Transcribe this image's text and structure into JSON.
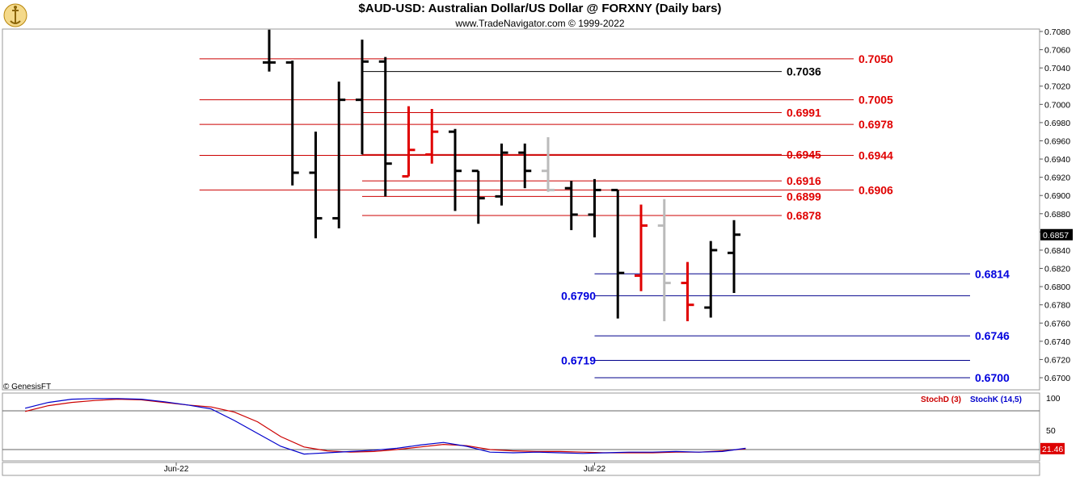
{
  "header": {
    "title": "$AUD-USD:  Australian Dollar/US Dollar @ FORXNY  (Daily bars)",
    "subtitle": "www.TradeNavigator.com © 1999-2022"
  },
  "footer": {
    "copyright": "© GenesisFT"
  },
  "colors": {
    "up_bar": "#000000",
    "down_bar_red": "#e00000",
    "neutral_bar_gray": "#bbbbbb",
    "resistance_line": "#cc0000",
    "support_line": "#00008b",
    "support_label": "#0000dd",
    "stoch_d": "#cc0000",
    "stoch_k": "#0000cc",
    "price_marker_bg": "#000000",
    "stoch_marker_bg": "#dd0000"
  },
  "chart_data": [
    {
      "type": "ohlc",
      "ylim": [
        0.669,
        0.709
      ],
      "y_ticks": [
        "0.7080",
        "0.7060",
        "0.7040",
        "0.7020",
        "0.7000",
        "0.6980",
        "0.6960",
        "0.6940",
        "0.6920",
        "0.6900",
        "0.6880",
        "0.6860",
        "0.6840",
        "0.6820",
        "0.6800",
        "0.6780",
        "0.6760",
        "0.6740",
        "0.6720",
        "0.6700"
      ],
      "x_labels": [
        {
          "label": "Jun-22",
          "index": -4
        },
        {
          "label": "Jul-22",
          "index": 14
        }
      ],
      "last_price": "0.6857",
      "bars": [
        {
          "o": 0.7046,
          "h": 0.7082,
          "l": 0.7036,
          "c": 0.7046,
          "color": "black"
        },
        {
          "o": 0.7046,
          "h": 0.7048,
          "l": 0.6911,
          "c": 0.6925,
          "color": "black"
        },
        {
          "o": 0.6925,
          "h": 0.697,
          "l": 0.6853,
          "c": 0.6875,
          "color": "black"
        },
        {
          "o": 0.6875,
          "h": 0.7025,
          "l": 0.6864,
          "c": 0.7005,
          "color": "black"
        },
        {
          "o": 0.7005,
          "h": 0.7071,
          "l": 0.6945,
          "c": 0.7047,
          "color": "black"
        },
        {
          "o": 0.7047,
          "h": 0.7052,
          "l": 0.6899,
          "c": 0.6935,
          "color": "black"
        },
        {
          "o": 0.6921,
          "h": 0.6998,
          "l": 0.6921,
          "c": 0.695,
          "color": "red"
        },
        {
          "o": 0.6945,
          "h": 0.6995,
          "l": 0.6935,
          "c": 0.697,
          "color": "red"
        },
        {
          "o": 0.697,
          "h": 0.6973,
          "l": 0.6883,
          "c": 0.6927,
          "color": "black"
        },
        {
          "o": 0.6927,
          "h": 0.6927,
          "l": 0.6869,
          "c": 0.6897,
          "color": "black"
        },
        {
          "o": 0.6899,
          "h": 0.6957,
          "l": 0.6889,
          "c": 0.6947,
          "color": "black"
        },
        {
          "o": 0.6947,
          "h": 0.6957,
          "l": 0.6908,
          "c": 0.6927,
          "color": "black"
        },
        {
          "o": 0.6927,
          "h": 0.6964,
          "l": 0.6904,
          "c": 0.6906,
          "color": "gray"
        },
        {
          "o": 0.6908,
          "h": 0.6916,
          "l": 0.6862,
          "c": 0.6879,
          "color": "black"
        },
        {
          "o": 0.6879,
          "h": 0.6918,
          "l": 0.6854,
          "c": 0.6906,
          "color": "black"
        },
        {
          "o": 0.6906,
          "h": 0.6906,
          "l": 0.6765,
          "c": 0.6815,
          "color": "black"
        },
        {
          "o": 0.6812,
          "h": 0.689,
          "l": 0.6795,
          "c": 0.6867,
          "color": "red"
        },
        {
          "o": 0.6867,
          "h": 0.6896,
          "l": 0.6762,
          "c": 0.6804,
          "color": "gray"
        },
        {
          "o": 0.6804,
          "h": 0.6827,
          "l": 0.6762,
          "c": 0.678,
          "color": "red"
        },
        {
          "o": 0.6777,
          "h": 0.685,
          "l": 0.6766,
          "c": 0.684,
          "color": "black"
        },
        {
          "o": 0.6837,
          "h": 0.6873,
          "l": 0.6793,
          "c": 0.6857,
          "color": "black"
        }
      ],
      "levels": [
        {
          "value": 0.705,
          "label": "0.7050",
          "kind": "resistance",
          "from_index": -3
        },
        {
          "value": 0.7036,
          "label": "0.7036",
          "kind": "black",
          "from_index": 4
        },
        {
          "value": 0.7005,
          "label": "0.7005",
          "kind": "resistance",
          "from_index": -3
        },
        {
          "value": 0.6991,
          "label": "0.6991",
          "kind": "resistance",
          "from_index": 4
        },
        {
          "value": 0.6978,
          "label": "0.6978",
          "kind": "resistance",
          "from_index": -3
        },
        {
          "value": 0.6945,
          "label": "0.6945",
          "kind": "resistance",
          "from_index": 4
        },
        {
          "value": 0.6944,
          "label": "0.6944",
          "kind": "resistance",
          "from_index": -3
        },
        {
          "value": 0.6916,
          "label": "0.6916",
          "kind": "resistance",
          "from_index": 4
        },
        {
          "value": 0.6906,
          "label": "0.6906",
          "kind": "resistance",
          "from_index": -3
        },
        {
          "value": 0.6899,
          "label": "0.6899",
          "kind": "resistance",
          "from_index": 4
        },
        {
          "value": 0.6878,
          "label": "0.6878",
          "kind": "resistance",
          "from_index": 4
        },
        {
          "value": 0.6814,
          "label": "0.6814",
          "kind": "support",
          "from_index": 14
        },
        {
          "value": 0.679,
          "label": "0.6790",
          "kind": "support",
          "from_index": 14
        },
        {
          "value": 0.6746,
          "label": "0.6746",
          "kind": "support",
          "from_index": 14
        },
        {
          "value": 0.6719,
          "label": "0.6719",
          "kind": "support",
          "from_index": 14
        },
        {
          "value": 0.67,
          "label": "0.6700",
          "kind": "support",
          "from_index": 14
        }
      ]
    },
    {
      "type": "line",
      "ylim": [
        0,
        100
      ],
      "y_ticks": [
        "100",
        "50"
      ],
      "reference_lines": [
        80,
        20
      ],
      "last_value": "21.46",
      "series": [
        {
          "name": "StochD (3)",
          "color": "#cc0000",
          "values": [
            [
              -10.5,
              79
            ],
            [
              -9.5,
              88
            ],
            [
              -8.5,
              93
            ],
            [
              -7.5,
              96
            ],
            [
              -6.5,
              98
            ],
            [
              -5.5,
              97
            ],
            [
              -4.5,
              93
            ],
            [
              -3.5,
              89
            ],
            [
              -2.5,
              86
            ],
            [
              -1.5,
              78
            ],
            [
              -0.5,
              63
            ],
            [
              0.5,
              40
            ],
            [
              1.5,
              24
            ],
            [
              2.5,
              18
            ],
            [
              3.5,
              16
            ],
            [
              4.5,
              17
            ],
            [
              5.5,
              20
            ],
            [
              6.5,
              24
            ],
            [
              7.5,
              28
            ],
            [
              8.5,
              26
            ],
            [
              9.5,
              20
            ],
            [
              10.5,
              18
            ],
            [
              11.5,
              17
            ],
            [
              12.5,
              17
            ],
            [
              13.5,
              16
            ],
            [
              14.5,
              15
            ],
            [
              15.5,
              15
            ],
            [
              16.5,
              15
            ],
            [
              17.5,
              16
            ],
            [
              18.5,
              16
            ],
            [
              19.5,
              18
            ],
            [
              20.5,
              21
            ]
          ]
        },
        {
          "name": "StochK (14,5)",
          "color": "#0000cc",
          "values": [
            [
              -10.5,
              84
            ],
            [
              -9.5,
              93
            ],
            [
              -8.5,
              98
            ],
            [
              -7.5,
              99
            ],
            [
              -6.5,
              99
            ],
            [
              -5.5,
              98
            ],
            [
              -4.5,
              94
            ],
            [
              -3.5,
              89
            ],
            [
              -2.5,
              83
            ],
            [
              -1.5,
              65
            ],
            [
              -0.5,
              45
            ],
            [
              0.5,
              25
            ],
            [
              1.5,
              13
            ],
            [
              2.5,
              15
            ],
            [
              3.5,
              17
            ],
            [
              4.5,
              19
            ],
            [
              5.5,
              22
            ],
            [
              6.5,
              27
            ],
            [
              7.5,
              31
            ],
            [
              8.5,
              25
            ],
            [
              9.5,
              16
            ],
            [
              10.5,
              15
            ],
            [
              11.5,
              16
            ],
            [
              12.5,
              15
            ],
            [
              13.5,
              14
            ],
            [
              14.5,
              15
            ],
            [
              15.5,
              16
            ],
            [
              16.5,
              16
            ],
            [
              17.5,
              17
            ],
            [
              18.5,
              16
            ],
            [
              19.5,
              17
            ],
            [
              20.5,
              22
            ]
          ]
        }
      ]
    }
  ]
}
